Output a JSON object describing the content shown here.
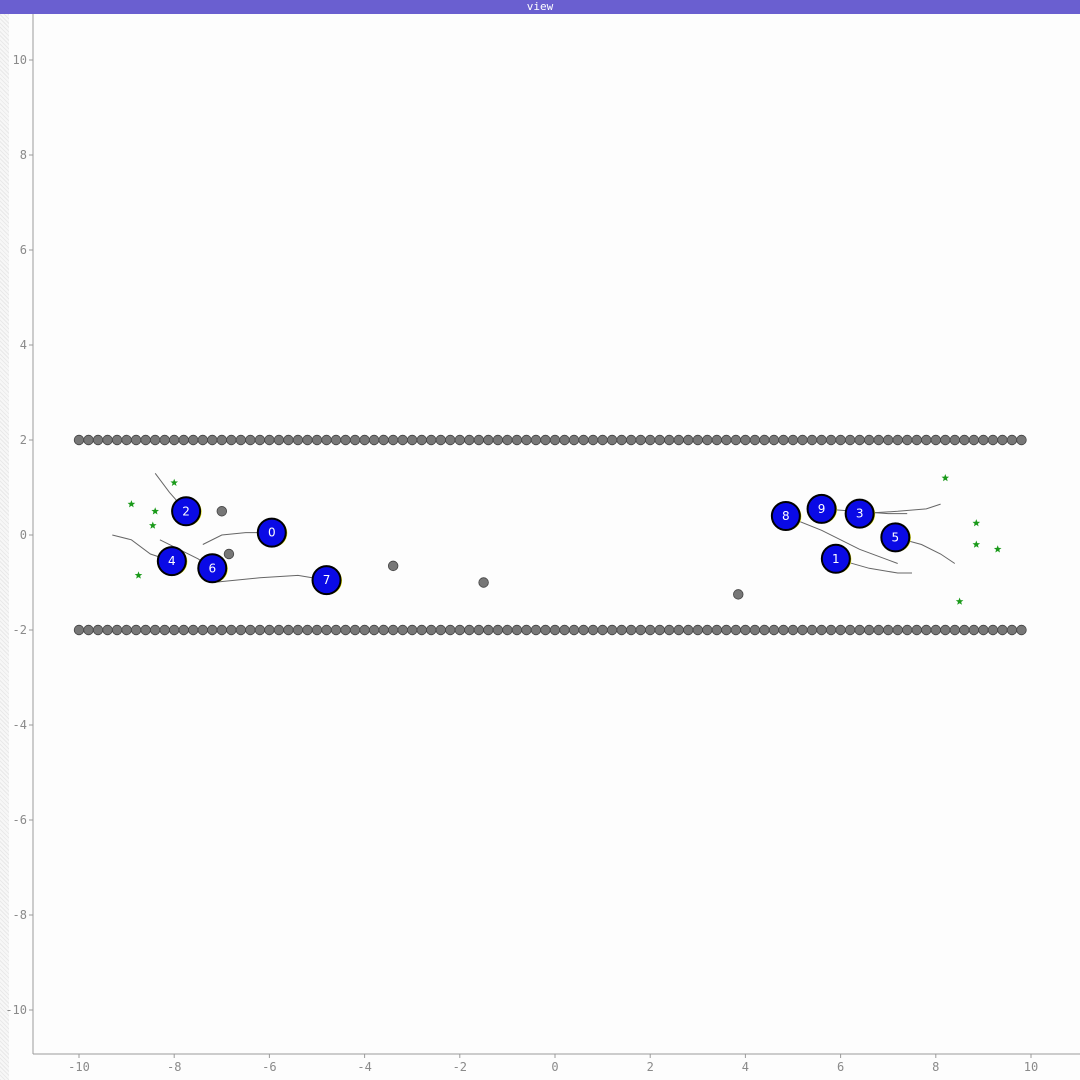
{
  "window": {
    "title": "view"
  },
  "axes": {
    "xlim": [
      -10,
      10
    ],
    "ylim": [
      -10,
      10
    ],
    "x_ticks": [
      -10,
      -8,
      -6,
      -4,
      -2,
      0,
      2,
      4,
      6,
      8,
      10
    ],
    "y_ticks": [
      10,
      8,
      6,
      4,
      2,
      0,
      -2,
      -4,
      -6,
      -8,
      -10
    ]
  },
  "colors": {
    "agent_fill": "#0a0ae6",
    "agent_ring": "#000000",
    "heading_mark": "#e6e600",
    "obstacle": "#777777",
    "goal": "#1a9a1a",
    "trail": "#666666",
    "title_bar": "#6a5fd0"
  },
  "walls": {
    "y": [
      2,
      -2
    ],
    "x_start": -10,
    "x_end": 9.8,
    "spacing": 0.2
  },
  "obstacles": [
    {
      "x": -7.0,
      "y": 0.5
    },
    {
      "x": -6.85,
      "y": -0.4
    },
    {
      "x": -3.4,
      "y": -0.65
    },
    {
      "x": -1.5,
      "y": -1.0
    },
    {
      "x": 3.85,
      "y": -1.25
    }
  ],
  "goals": [
    {
      "x": -8.0,
      "y": 1.1
    },
    {
      "x": -8.9,
      "y": 0.65
    },
    {
      "x": -8.4,
      "y": 0.5
    },
    {
      "x": -8.45,
      "y": 0.2
    },
    {
      "x": -8.75,
      "y": -0.85
    },
    {
      "x": 8.2,
      "y": 1.2
    },
    {
      "x": 8.85,
      "y": 0.25
    },
    {
      "x": 8.85,
      "y": -0.2
    },
    {
      "x": 9.3,
      "y": -0.3
    },
    {
      "x": 8.5,
      "y": -1.4
    }
  ],
  "agents": [
    {
      "id": "0",
      "x": -5.95,
      "y": 0.05,
      "trail": [
        [
          -7.4,
          -0.2
        ],
        [
          -7.0,
          0.0
        ],
        [
          -6.5,
          0.05
        ],
        [
          -5.95,
          0.05
        ]
      ]
    },
    {
      "id": "1",
      "x": 5.9,
      "y": -0.5,
      "trail": [
        [
          5.9,
          -0.5
        ],
        [
          6.6,
          -0.7
        ],
        [
          7.2,
          -0.8
        ],
        [
          7.5,
          -0.8
        ]
      ]
    },
    {
      "id": "2",
      "x": -7.75,
      "y": 0.5,
      "trail": [
        [
          -8.4,
          1.3
        ],
        [
          -8.1,
          0.9
        ],
        [
          -7.75,
          0.5
        ]
      ]
    },
    {
      "id": "3",
      "x": 6.4,
      "y": 0.45,
      "trail": [
        [
          6.4,
          0.45
        ],
        [
          7.2,
          0.5
        ],
        [
          7.8,
          0.55
        ],
        [
          8.1,
          0.65
        ]
      ]
    },
    {
      "id": "4",
      "x": -8.05,
      "y": -0.55,
      "trail": [
        [
          -9.3,
          0.0
        ],
        [
          -8.9,
          -0.1
        ],
        [
          -8.5,
          -0.4
        ],
        [
          -8.05,
          -0.55
        ]
      ]
    },
    {
      "id": "5",
      "x": 7.15,
      "y": -0.05,
      "trail": [
        [
          7.15,
          -0.05
        ],
        [
          7.7,
          -0.2
        ],
        [
          8.1,
          -0.4
        ],
        [
          8.4,
          -0.6
        ]
      ]
    },
    {
      "id": "6",
      "x": -7.2,
      "y": -0.7,
      "trail": [
        [
          -8.3,
          -0.1
        ],
        [
          -7.9,
          -0.3
        ],
        [
          -7.5,
          -0.5
        ],
        [
          -7.2,
          -0.7
        ]
      ]
    },
    {
      "id": "7",
      "x": -4.8,
      "y": -0.95,
      "trail": [
        [
          -7.2,
          -1.0
        ],
        [
          -6.2,
          -0.9
        ],
        [
          -5.4,
          -0.85
        ],
        [
          -4.8,
          -0.95
        ]
      ]
    },
    {
      "id": "8",
      "x": 4.85,
      "y": 0.4,
      "trail": [
        [
          4.85,
          0.4
        ],
        [
          5.6,
          0.1
        ],
        [
          6.4,
          -0.3
        ],
        [
          7.2,
          -0.6
        ]
      ]
    },
    {
      "id": "9",
      "x": 5.6,
      "y": 0.55,
      "trail": [
        [
          5.6,
          0.55
        ],
        [
          6.3,
          0.5
        ],
        [
          7.0,
          0.45
        ],
        [
          7.4,
          0.45
        ]
      ]
    }
  ]
}
